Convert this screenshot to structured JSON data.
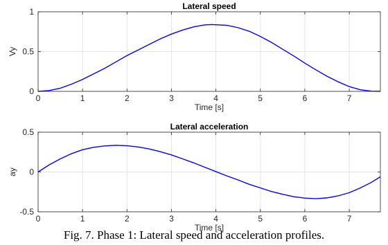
{
  "caption": "Fig. 7.  Phase 1: Lateral speed and acceleration profiles.",
  "chart_data": [
    {
      "type": "line",
      "title": "Lateral speed",
      "xlabel": "Time [s]",
      "ylabel": "Vy",
      "xlim": [
        0,
        7.7
      ],
      "ylim": [
        0,
        1
      ],
      "xticks": [
        0,
        1,
        2,
        3,
        4,
        5,
        6,
        7
      ],
      "yticks": [
        0,
        0.5,
        1
      ],
      "grid": true,
      "series": [
        {
          "color": "#0000ff",
          "x": [
            0,
            0.25,
            0.5,
            0.75,
            1,
            1.25,
            1.5,
            1.75,
            2,
            2.25,
            2.5,
            2.75,
            3,
            3.25,
            3.5,
            3.75,
            3.9,
            4.25,
            4.5,
            4.75,
            5,
            5.25,
            5.5,
            5.75,
            6,
            6.25,
            6.5,
            6.75,
            7,
            7.25,
            7.5,
            7.7
          ],
          "y": [
            0,
            0.01,
            0.04,
            0.09,
            0.15,
            0.22,
            0.29,
            0.37,
            0.45,
            0.52,
            0.59,
            0.66,
            0.72,
            0.77,
            0.81,
            0.835,
            0.84,
            0.83,
            0.8,
            0.755,
            0.69,
            0.615,
            0.53,
            0.445,
            0.355,
            0.27,
            0.19,
            0.12,
            0.06,
            0.02,
            0.003,
            0
          ]
        }
      ]
    },
    {
      "type": "line",
      "title": "Lateral acceleration",
      "xlabel": "Time [s]",
      "ylabel": "ay",
      "xlim": [
        0,
        7.7
      ],
      "ylim": [
        -0.5,
        0.5
      ],
      "xticks": [
        0,
        1,
        2,
        3,
        4,
        5,
        6,
        7
      ],
      "yticks": [
        -0.5,
        0,
        0.5
      ],
      "grid": true,
      "series": [
        {
          "color": "#0000ff",
          "x": [
            0,
            0.25,
            0.5,
            0.75,
            1,
            1.25,
            1.5,
            1.75,
            2,
            2.25,
            2.5,
            2.75,
            3,
            3.25,
            3.5,
            3.75,
            4,
            4.25,
            4.5,
            4.75,
            5,
            5.25,
            5.5,
            5.75,
            6,
            6.25,
            6.5,
            6.75,
            7,
            7.25,
            7.5,
            7.7
          ],
          "y": [
            0,
            0.09,
            0.165,
            0.23,
            0.28,
            0.31,
            0.328,
            0.335,
            0.33,
            0.315,
            0.29,
            0.255,
            0.215,
            0.165,
            0.115,
            0.06,
            0.005,
            -0.05,
            -0.1,
            -0.155,
            -0.2,
            -0.245,
            -0.28,
            -0.31,
            -0.328,
            -0.335,
            -0.325,
            -0.3,
            -0.26,
            -0.2,
            -0.13,
            -0.06
          ]
        }
      ]
    }
  ]
}
